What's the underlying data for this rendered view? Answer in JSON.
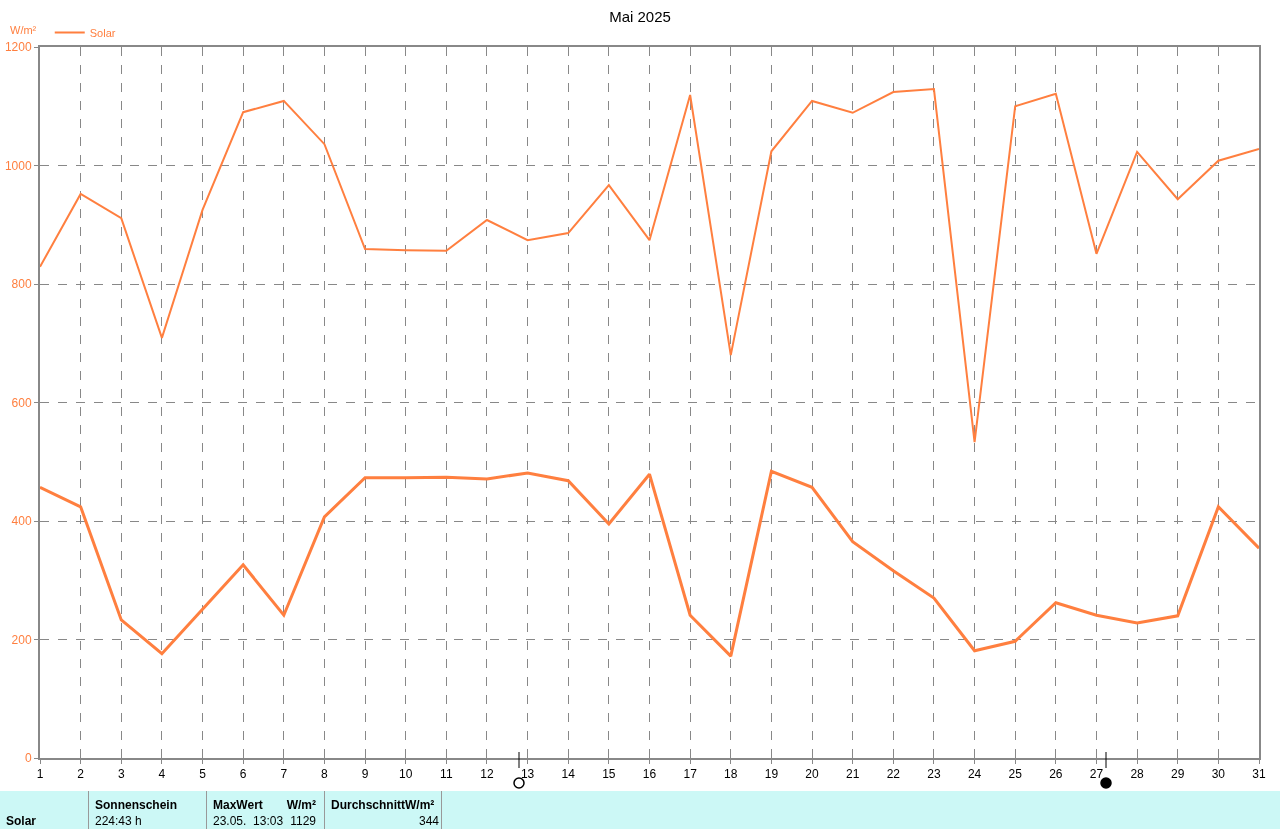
{
  "chart_data": {
    "type": "line",
    "title": "Mai 2025",
    "ylabel": "W/m²",
    "x": [
      1,
      2,
      3,
      4,
      5,
      6,
      7,
      8,
      9,
      10,
      11,
      12,
      13,
      14,
      15,
      16,
      17,
      18,
      19,
      20,
      21,
      22,
      23,
      24,
      25,
      26,
      27,
      28,
      29,
      30,
      31
    ],
    "series": [
      {
        "name": "Solar",
        "color": "#ff7f3f",
        "values": [
          829,
          952,
          911,
          709,
          925,
          1090,
          1109,
          1036,
          859,
          857,
          856,
          908,
          874,
          886,
          967,
          874,
          1119,
          680,
          1024,
          1109,
          1089,
          1124,
          1129,
          533,
          1100,
          1121,
          851,
          1023,
          943,
          1008,
          1028
        ]
      },
      {
        "color": "#ff7f3f",
        "values": [
          457,
          424,
          233,
          176,
          251,
          326,
          241,
          407,
          473,
          473,
          474,
          471,
          481,
          468,
          395,
          479,
          241,
          172,
          484,
          457,
          365,
          316,
          270,
          181,
          197,
          262,
          241,
          228,
          240,
          424,
          354
        ]
      }
    ],
    "xlim": [
      1,
      31
    ],
    "xticks": [
      1,
      2,
      3,
      4,
      5,
      6,
      7,
      8,
      9,
      10,
      11,
      12,
      13,
      14,
      15,
      16,
      17,
      18,
      19,
      20,
      21,
      22,
      23,
      24,
      25,
      26,
      27,
      28,
      29,
      30,
      31
    ],
    "ylim": [
      0,
      1200
    ],
    "yticks": [
      0,
      200,
      400,
      600,
      800,
      1000,
      1200
    ],
    "grid": true,
    "legend": "top left",
    "marker": "none",
    "line_style": "solid",
    "annotations": [
      "Solar",
      "Sonnenschein",
      "224:43 h",
      "MaxWert",
      "W/m²",
      "23.05.  13:03",
      "1129",
      "DurchschnittW/m²",
      "344"
    ]
  }
}
